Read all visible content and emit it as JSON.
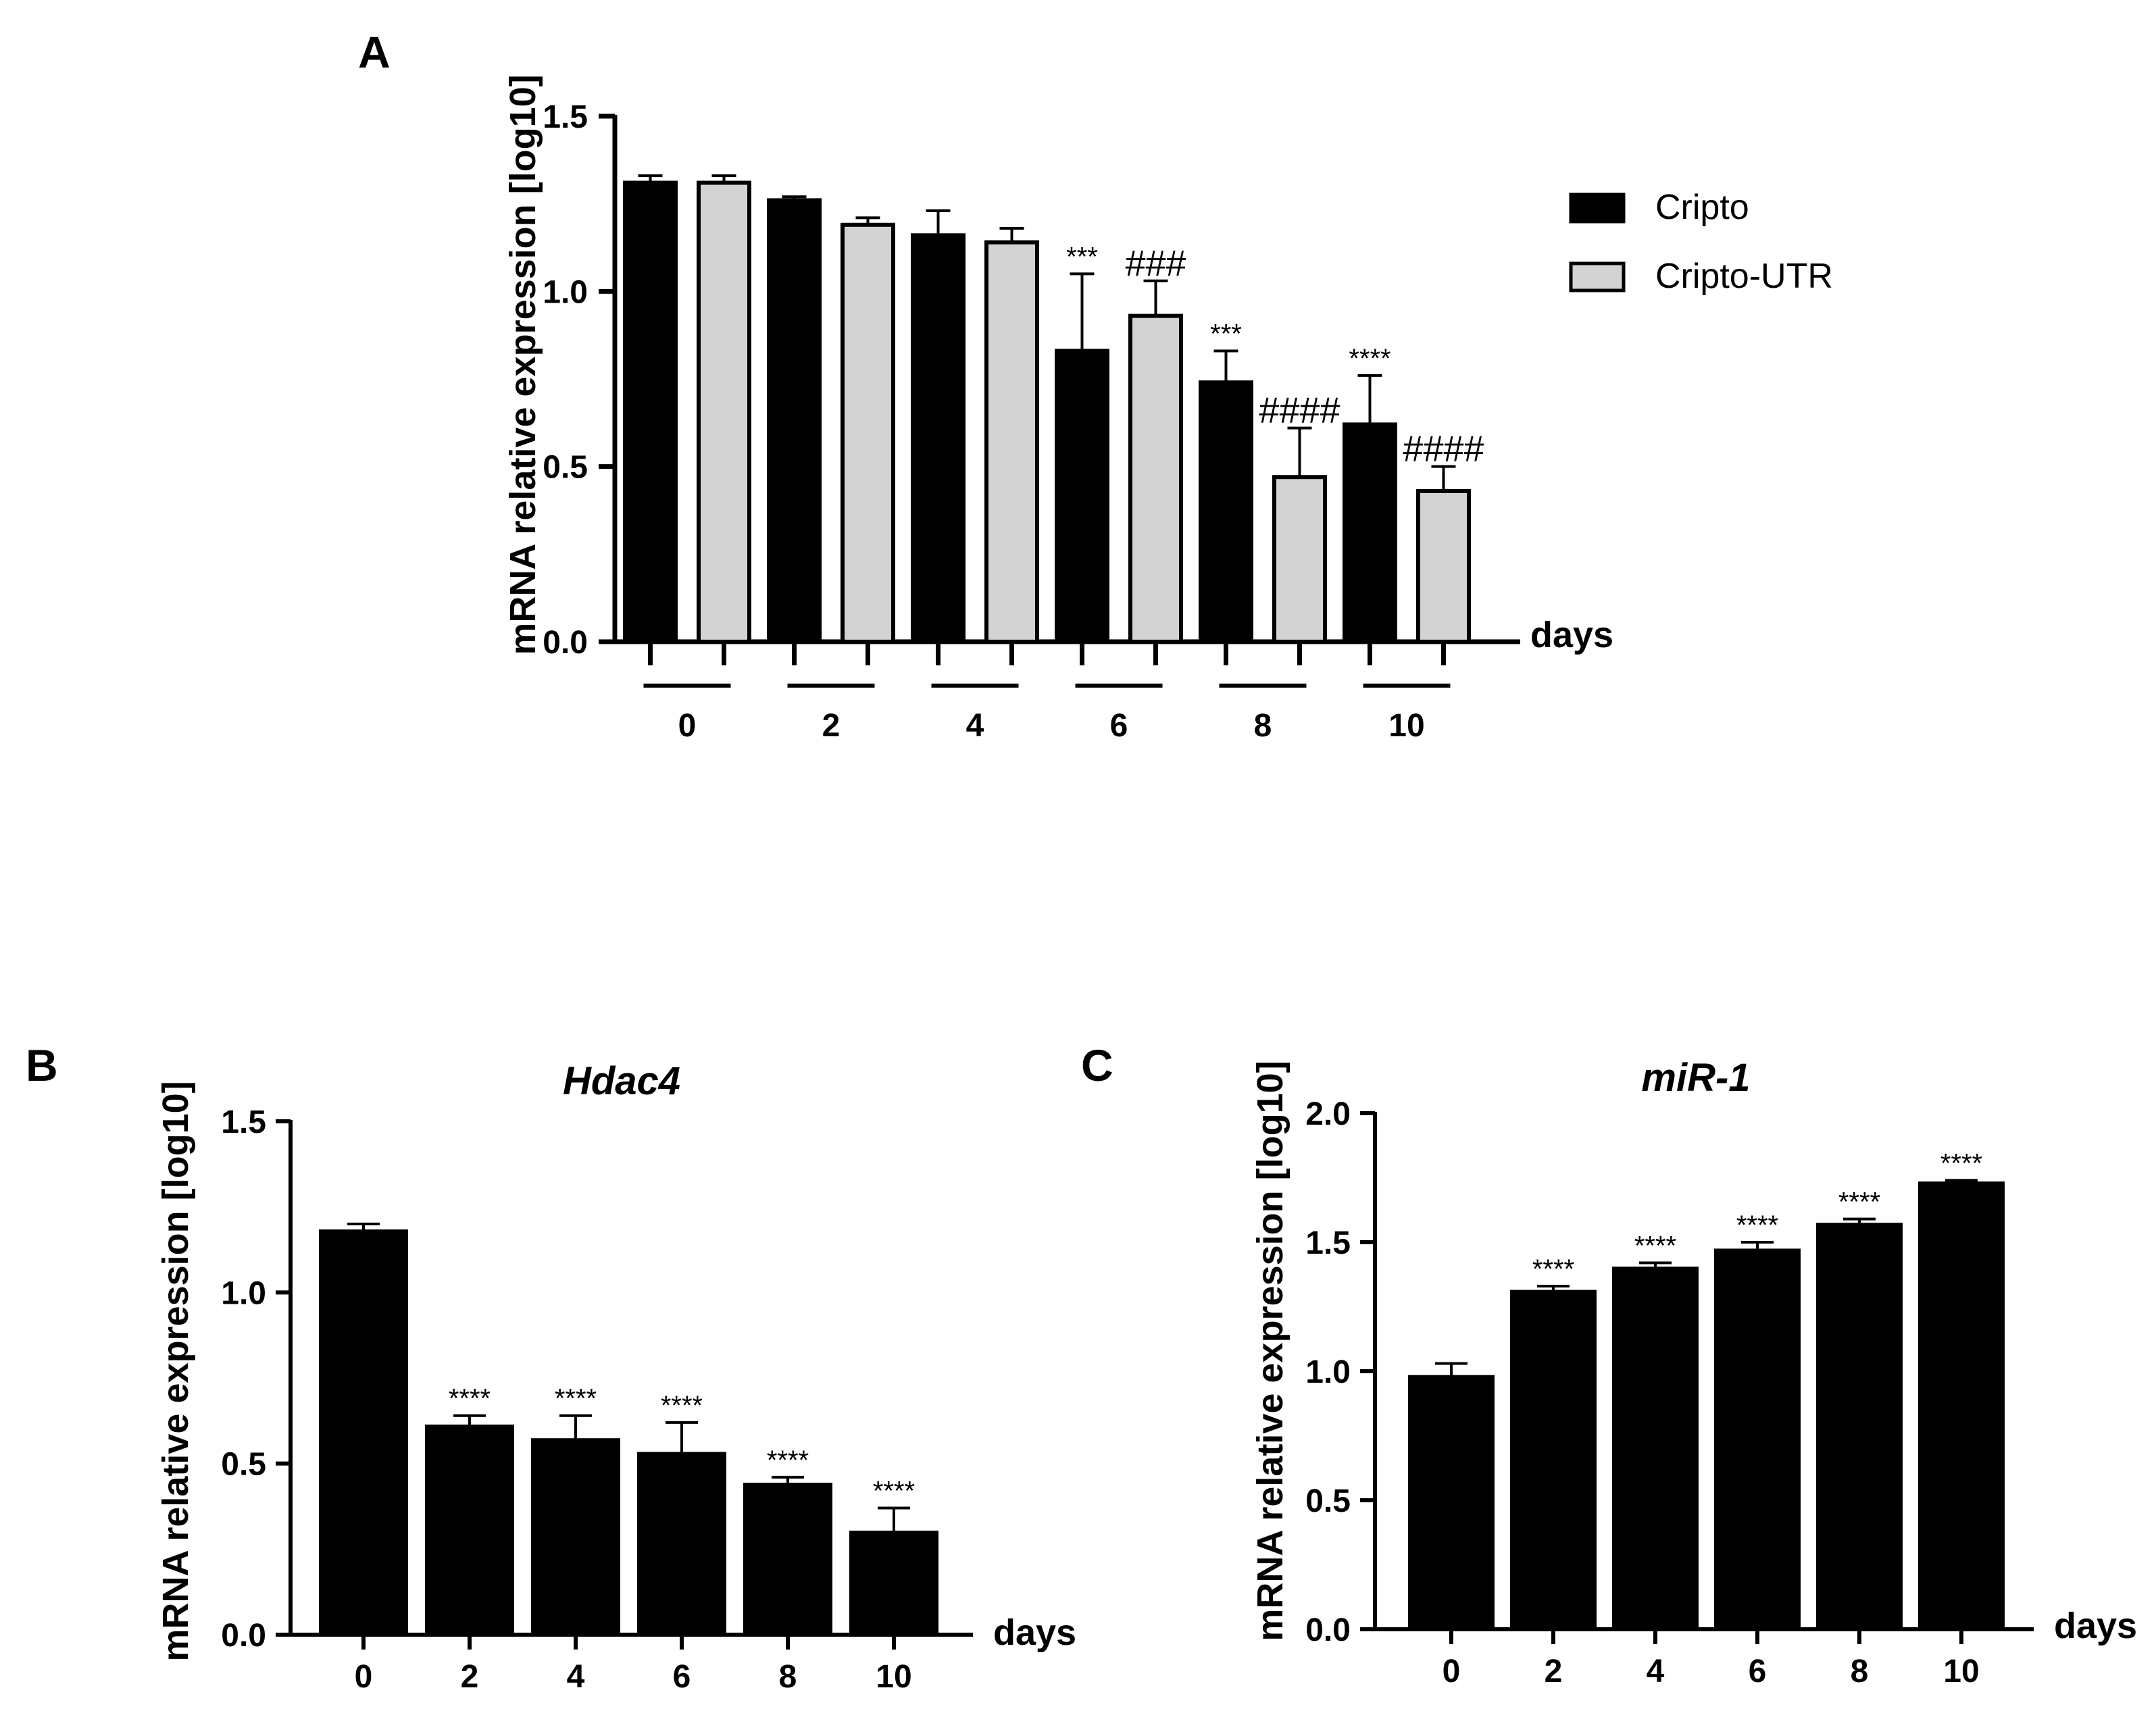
{
  "chart_data": [
    {
      "panel": "A",
      "type": "bar",
      "title": "",
      "ylabel": "mRNA relative expression [log10]",
      "xlabel": "days",
      "ylim": [
        0,
        1.5
      ],
      "yticks": [
        "0.0",
        "0.5",
        "1.0",
        "1.5"
      ],
      "categories": [
        "0",
        "2",
        "4",
        "6",
        "8",
        "10"
      ],
      "series": [
        {
          "name": "Cripto",
          "color": "#000000",
          "values": [
            1.31,
            1.26,
            1.16,
            0.83,
            0.74,
            0.62
          ],
          "errors": [
            0.02,
            0.01,
            0.07,
            0.22,
            0.09,
            0.14
          ],
          "annotations": [
            "",
            "",
            "",
            "***",
            "***",
            "****"
          ]
        },
        {
          "name": "Cripto-UTR",
          "color": "#d3d3d3",
          "values": [
            1.31,
            1.19,
            1.14,
            0.93,
            0.47,
            0.43
          ],
          "errors": [
            0.02,
            0.02,
            0.04,
            0.1,
            0.14,
            0.07
          ],
          "annotations": [
            "",
            "",
            "",
            "###",
            "####",
            "####"
          ]
        }
      ],
      "legend": [
        "Cripto",
        "Cripto-UTR"
      ]
    },
    {
      "panel": "B",
      "type": "bar",
      "title": "Hdac4",
      "ylabel": "mRNA relative expression [log10]",
      "xlabel": "days",
      "ylim": [
        0,
        1.5
      ],
      "yticks": [
        "0.0",
        "0.5",
        "1.0",
        "1.5"
      ],
      "categories": [
        "0",
        "2",
        "4",
        "6",
        "8",
        "10"
      ],
      "values": [
        1.18,
        0.61,
        0.57,
        0.53,
        0.44,
        0.3
      ],
      "errors": [
        0.02,
        0.03,
        0.07,
        0.09,
        0.02,
        0.07
      ],
      "annotations": [
        "",
        "****",
        "****",
        "****",
        "****",
        "****"
      ]
    },
    {
      "panel": "C",
      "type": "bar",
      "title": "miR-1",
      "ylabel": "mRNA relative expression [log10]",
      "xlabel": "days",
      "ylim": [
        0,
        2.0
      ],
      "yticks": [
        "0.0",
        "0.5",
        "1.0",
        "1.5",
        "2.0"
      ],
      "categories": [
        "0",
        "2",
        "4",
        "6",
        "8",
        "10"
      ],
      "values": [
        0.98,
        1.31,
        1.4,
        1.47,
        1.57,
        1.73
      ],
      "errors": [
        0.05,
        0.02,
        0.02,
        0.03,
        0.02,
        0.01
      ],
      "annotations": [
        "",
        "****",
        "****",
        "****",
        "****",
        "****"
      ]
    }
  ]
}
